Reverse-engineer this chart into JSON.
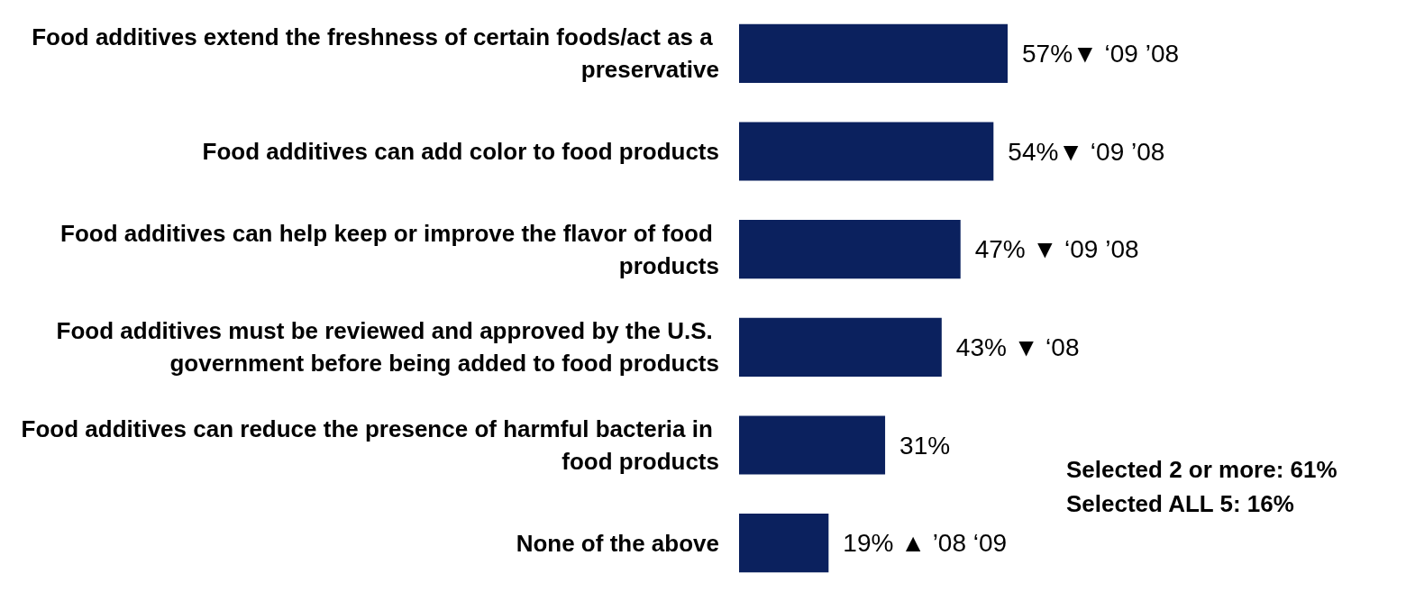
{
  "chart_data": {
    "type": "bar",
    "orientation": "horizontal",
    "categories": [
      "Food additives extend the freshness of certain foods/act as a preservative",
      "Food additives can add color to food products",
      "Food additives can help keep or improve the flavor of food products",
      "Food additives must be reviewed and approved by the U.S. government before being added to food products",
      "Food additives can reduce the presence of harmful bacteria in food products",
      "None of the above"
    ],
    "values": [
      57,
      54,
      47,
      43,
      31,
      19
    ],
    "value_labels": [
      "57%▼ ‘09 ’08",
      "54%▼ ‘09 ’08",
      "47% ▼ ‘09 ’08",
      "43% ▼ ‘08",
      "31%",
      "19% ▲ ’08 ‘09"
    ],
    "color": "#0b215e",
    "annotations": [
      "Selected 2 or more: 61%",
      "Selected ALL 5: 16%"
    ]
  }
}
